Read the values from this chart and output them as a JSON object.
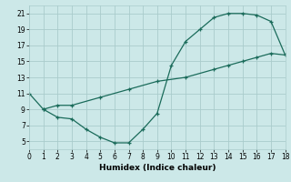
{
  "xlabel": "Humidex (Indice chaleur)",
  "bg_color": "#cce8e8",
  "grid_color": "#aacccc",
  "line_color": "#1a6b5a",
  "line1_x": [
    0,
    1,
    2,
    3,
    4,
    5,
    6,
    7,
    8,
    9,
    10,
    11,
    12,
    13,
    14,
    15,
    16,
    17,
    18
  ],
  "line1_y": [
    11,
    9,
    8.0,
    7.8,
    6.5,
    5.5,
    4.8,
    4.8,
    6.5,
    8.5,
    14.5,
    17.5,
    19,
    20.5,
    21,
    21,
    20.8,
    20,
    15.8
  ],
  "line2_x": [
    1,
    2,
    3,
    5,
    7,
    9,
    11,
    13,
    14,
    15,
    16,
    17,
    18
  ],
  "line2_y": [
    9,
    9.5,
    9.5,
    10.5,
    11.5,
    12.5,
    13.0,
    14.0,
    14.5,
    15.0,
    15.5,
    16.0,
    15.8
  ],
  "xlim": [
    0,
    18
  ],
  "ylim": [
    4,
    22
  ],
  "yticks": [
    5,
    7,
    9,
    11,
    13,
    15,
    17,
    19,
    21
  ],
  "xticks": [
    0,
    1,
    2,
    3,
    4,
    5,
    6,
    7,
    8,
    9,
    10,
    11,
    12,
    13,
    14,
    15,
    16,
    17,
    18
  ],
  "marker": "+",
  "markersize": 3.5,
  "linewidth": 0.9,
  "xlabel_fontsize": 6.5,
  "tick_fontsize": 5.5
}
